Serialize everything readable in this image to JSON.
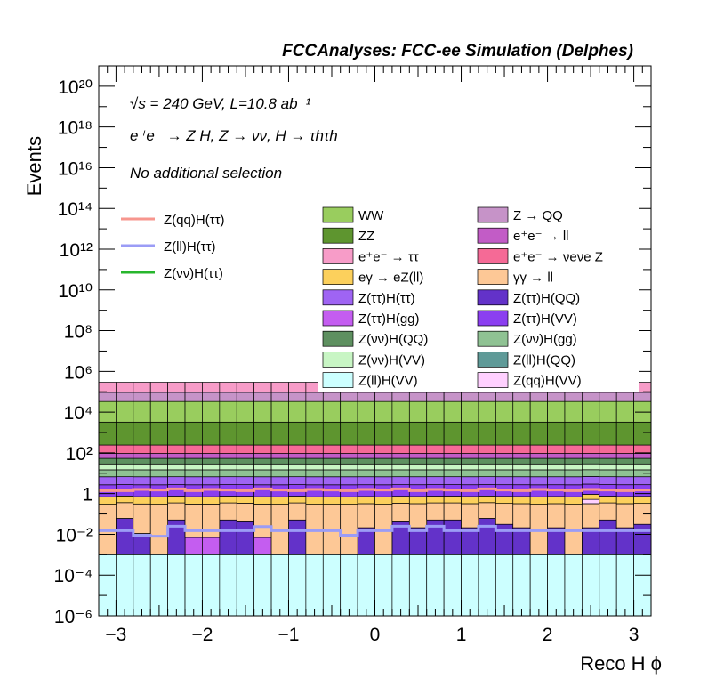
{
  "header": {
    "title": "FCCAnalyses: FCC-ee Simulation (Delphes)"
  },
  "annotations": {
    "energy": "√s = 240 GeV, L=10.8 ab⁻¹",
    "process": "e⁺e⁻ → Z H, Z → νν, H → τhτh",
    "selection": "No additional selection"
  },
  "chart_data": {
    "type": "bar",
    "title": "FCCAnalyses: FCC-ee Simulation (Delphes)",
    "xlabel": "Reco H ϕ",
    "ylabel": "Events",
    "xlim": [
      -3.2,
      3.2
    ],
    "ylim": [
      1e-06,
      1e+21
    ],
    "ylog": true,
    "grid": false,
    "x_tick_labels": [
      "−3",
      "−2",
      "−1",
      "0",
      "1",
      "2",
      "3"
    ],
    "y_tick_labels": [
      "10⁻⁶",
      "10⁻⁴",
      "10⁻²",
      "1",
      "10²",
      "10⁴",
      "10⁶",
      "10⁸",
      "10¹⁰",
      "10¹²",
      "10¹⁴",
      "10¹⁶",
      "10¹⁸",
      "10²⁰"
    ],
    "bins": 32,
    "stack": [
      {
        "name": "Z(ll)H(VV)",
        "color": "#ccffff",
        "values": [
          0.001,
          0.001,
          0.001,
          0.001,
          0.001,
          0.001,
          0.001,
          0.001,
          0.001,
          0.001,
          0.001,
          0.001,
          0.001,
          0.001,
          0.001,
          0.001,
          0.001,
          0.001,
          0.001,
          0.001,
          0.001,
          0.001,
          0.001,
          0.001,
          0.001,
          0.001,
          0.001,
          0.001,
          0.001,
          0.001,
          0.001,
          0.001
        ]
      },
      {
        "name": "Z(ll)H(QQ)",
        "color": "#5f9a98",
        "values": [
          0.0,
          0.0,
          0.0,
          0.0,
          0.0,
          0.0,
          0.0,
          0.0,
          0.0,
          0.0,
          0.0,
          0.0,
          0.0,
          0.0,
          0.0,
          0.0,
          0.0,
          0.0,
          5e-05,
          0.0,
          0.0,
          0.0,
          5e-05,
          0.0,
          0.0,
          0.0,
          0.0,
          0.0,
          0.0,
          0.0,
          0.0,
          0.0
        ]
      },
      {
        "name": "Z(ττ)H(gg)",
        "color": "#c45df0",
        "values": [
          0.0,
          0.0,
          0.0,
          0.0,
          0.0,
          0.006,
          0.006,
          0.0,
          0.0,
          0.006,
          0.0,
          0.0,
          0.0,
          0.0,
          0.0,
          0.0,
          0.0,
          0.0,
          0.0,
          0.0,
          0.0,
          0.0,
          0.0,
          0.0,
          0.0,
          0.0,
          0.0,
          0.0,
          0.0,
          0.0,
          0.0,
          0.0
        ]
      },
      {
        "name": "Z(ττ)H(QQ)",
        "color": "#6332c9",
        "values": [
          0.0,
          0.06,
          0.01,
          0.0,
          0.05,
          0.0,
          0.0,
          0.05,
          0.04,
          0.0,
          0.0,
          0.05,
          0.0,
          0.0,
          0.0,
          0.02,
          0.0,
          0.04,
          0.02,
          0.05,
          0.05,
          0.02,
          0.06,
          0.03,
          0.02,
          0.0,
          0.02,
          0.0,
          0.02,
          0.05,
          0.02,
          0.03
        ]
      },
      {
        "name": "γγ → ll",
        "color": "#fdc896",
        "values": [
          0.3,
          0.3,
          0.3,
          0.3,
          0.3,
          0.3,
          0.3,
          0.3,
          0.3,
          0.3,
          0.3,
          0.3,
          0.3,
          0.3,
          0.3,
          0.3,
          0.3,
          0.3,
          0.3,
          0.3,
          0.3,
          0.3,
          0.3,
          0.3,
          0.3,
          0.3,
          0.3,
          0.3,
          0.3,
          0.3,
          0.3,
          0.3
        ]
      },
      {
        "name": "Z(qq)H(VV)",
        "color": "#ffd0ff",
        "values": [
          0.0,
          0.0,
          0.0,
          0.0,
          0.0,
          0.0,
          0.0,
          0.0,
          0.0,
          0.0,
          0.0,
          0.0,
          0.0,
          0.0,
          0.0,
          0.0,
          0.0,
          0.0,
          0.0,
          0.0,
          0.0,
          0.0,
          0.0,
          0.0,
          0.0,
          0.0,
          0.0,
          0.0,
          0.2,
          0.0,
          0.0,
          0.0
        ]
      },
      {
        "name": "eγ → eZ(ll)",
        "color": "#fcd05c",
        "values": [
          0.4,
          0.4,
          0.4,
          0.4,
          0.4,
          0.4,
          0.4,
          0.4,
          0.4,
          0.4,
          0.4,
          0.4,
          0.4,
          0.4,
          0.4,
          0.4,
          0.4,
          0.4,
          0.4,
          0.4,
          0.4,
          0.4,
          0.4,
          0.4,
          0.4,
          0.4,
          0.4,
          0.4,
          0.4,
          0.4,
          0.4,
          0.4
        ]
      },
      {
        "name": "Z(ττ)H(VV)",
        "color": "#8b3ff0",
        "values": [
          2.0,
          2.0,
          2.0,
          2.0,
          2.0,
          2.0,
          2.0,
          2.0,
          2.0,
          2.0,
          2.0,
          2.0,
          2.0,
          2.0,
          2.0,
          2.0,
          2.0,
          2.0,
          2.0,
          2.0,
          2.0,
          2.0,
          2.0,
          2.0,
          2.0,
          2.0,
          2.0,
          2.0,
          2.0,
          2.0,
          2.0,
          2.0
        ]
      },
      {
        "name": "Z(ττ)H(ττ)",
        "color": "#9f64f3",
        "values": [
          4.0,
          4.0,
          4.0,
          4.0,
          4.0,
          4.0,
          4.0,
          4.0,
          4.0,
          4.0,
          4.0,
          4.0,
          4.0,
          4.0,
          4.0,
          4.0,
          4.0,
          4.0,
          4.0,
          4.0,
          4.0,
          4.0,
          4.0,
          4.0,
          4.0,
          4.0,
          4.0,
          4.0,
          4.0,
          4.0,
          4.0,
          4.0
        ]
      },
      {
        "name": "Z(νν)H(gg)",
        "color": "#8fc293",
        "values": [
          8.0,
          8.0,
          8.0,
          8.0,
          8.0,
          8.0,
          8.0,
          8.0,
          8.0,
          8.0,
          8.0,
          8.0,
          8.0,
          8.0,
          8.0,
          8.0,
          8.0,
          8.0,
          8.0,
          8.0,
          8.0,
          8.0,
          8.0,
          8.0,
          8.0,
          8.0,
          8.0,
          8.0,
          8.0,
          8.0,
          8.0,
          8.0
        ]
      },
      {
        "name": "Z(νν)H(VV)",
        "color": "#c8f5c4",
        "values": [
          14.0,
          14.0,
          14.0,
          14.0,
          14.0,
          14.0,
          14.0,
          14.0,
          14.0,
          14.0,
          14.0,
          14.0,
          14.0,
          14.0,
          14.0,
          14.0,
          14.0,
          14.0,
          14.0,
          14.0,
          14.0,
          14.0,
          14.0,
          14.0,
          14.0,
          14.0,
          14.0,
          14.0,
          14.0,
          14.0,
          14.0,
          14.0
        ]
      },
      {
        "name": "Z(νν)H(QQ)",
        "color": "#5e9060",
        "values": [
          25.0,
          25.0,
          25.0,
          25.0,
          25.0,
          25.0,
          25.0,
          25.0,
          25.0,
          25.0,
          25.0,
          25.0,
          25.0,
          25.0,
          25.0,
          25.0,
          25.0,
          25.0,
          25.0,
          25.0,
          25.0,
          25.0,
          25.0,
          25.0,
          25.0,
          25.0,
          25.0,
          25.0,
          25.0,
          25.0,
          25.0,
          25.0
        ]
      },
      {
        "name": "e⁺e⁻ → ll",
        "color": "#c25cc6",
        "values": [
          40.0,
          40.0,
          40.0,
          40.0,
          40.0,
          40.0,
          40.0,
          40.0,
          40.0,
          40.0,
          40.0,
          40.0,
          40.0,
          40.0,
          40.0,
          40.0,
          40.0,
          40.0,
          40.0,
          40.0,
          40.0,
          40.0,
          40.0,
          40.0,
          40.0,
          40.0,
          40.0,
          40.0,
          40.0,
          40.0,
          40.0,
          40.0
        ]
      },
      {
        "name": "e⁺e⁻ → νeνe Z",
        "color": "#f56a96",
        "values": [
          150.0,
          150.0,
          150.0,
          150.0,
          150.0,
          150.0,
          150.0,
          150.0,
          150.0,
          150.0,
          150.0,
          150.0,
          150.0,
          150.0,
          150.0,
          150.0,
          150.0,
          150.0,
          150.0,
          150.0,
          150.0,
          150.0,
          150.0,
          150.0,
          150.0,
          150.0,
          150.0,
          150.0,
          150.0,
          150.0,
          150.0,
          150.0
        ]
      },
      {
        "name": "ZZ",
        "color": "#5e952f",
        "values": [
          3000.0,
          3000.0,
          3000.0,
          3000.0,
          3000.0,
          3000.0,
          3000.0,
          3000.0,
          3000.0,
          3000.0,
          3000.0,
          3000.0,
          3000.0,
          3000.0,
          3000.0,
          3000.0,
          3000.0,
          3000.0,
          3000.0,
          3000.0,
          3000.0,
          3000.0,
          3000.0,
          3000.0,
          3000.0,
          3000.0,
          3000.0,
          3000.0,
          3000.0,
          3000.0,
          3000.0,
          3000.0
        ]
      },
      {
        "name": "WW",
        "color": "#99cd5e",
        "values": [
          30000.0,
          30000.0,
          30000.0,
          30000.0,
          30000.0,
          30000.0,
          30000.0,
          30000.0,
          30000.0,
          30000.0,
          30000.0,
          30000.0,
          30000.0,
          30000.0,
          30000.0,
          30000.0,
          30000.0,
          30000.0,
          30000.0,
          30000.0,
          30000.0,
          30000.0,
          30000.0,
          30000.0,
          30000.0,
          30000.0,
          30000.0,
          30000.0,
          30000.0,
          30000.0,
          30000.0,
          30000.0
        ]
      },
      {
        "name": "Z → QQ",
        "color": "#c693c8",
        "values": [
          60000.0,
          60000.0,
          60000.0,
          60000.0,
          60000.0,
          60000.0,
          60000.0,
          60000.0,
          60000.0,
          60000.0,
          60000.0,
          60000.0,
          60000.0,
          60000.0,
          60000.0,
          60000.0,
          60000.0,
          60000.0,
          60000.0,
          60000.0,
          60000.0,
          60000.0,
          60000.0,
          60000.0,
          60000.0,
          60000.0,
          60000.0,
          60000.0,
          60000.0,
          60000.0,
          60000.0,
          60000.0
        ]
      },
      {
        "name": "e⁺e⁻ → ττ",
        "color": "#f79cc8",
        "values": [
          200000.0,
          200000.0,
          200000.0,
          200000.0,
          200000.0,
          200000.0,
          200000.0,
          200000.0,
          200000.0,
          200000.0,
          200000.0,
          200000.0,
          200000.0,
          200000.0,
          200000.0,
          200000.0,
          200000.0,
          200000.0,
          200000.0,
          200000.0,
          200000.0,
          200000.0,
          200000.0,
          200000.0,
          200000.0,
          200000.0,
          200000.0,
          200000.0,
          200000.0,
          200000.0,
          200000.0,
          200000.0
        ]
      }
    ],
    "signals": [
      {
        "name": "Z(qq)H(ττ)",
        "color": "#f7968e",
        "values": [
          1.4,
          1.4,
          1.6,
          1.5,
          1.7,
          1.4,
          1.6,
          1.5,
          1.4,
          1.7,
          1.5,
          1.4,
          1.6,
          1.5,
          1.4,
          1.6,
          1.5,
          1.7,
          1.4,
          1.6,
          1.5,
          1.4,
          1.7,
          1.5,
          1.4,
          1.6,
          1.5,
          1.4,
          1.6,
          1.5,
          1.4,
          1.5
        ]
      },
      {
        "name": "Z(ll)H(ττ)",
        "color": "#9b9cf6",
        "values": [
          0.015,
          0.015,
          0.009,
          0.008,
          0.025,
          0.015,
          0.015,
          0.015,
          0.015,
          0.024,
          0.015,
          0.015,
          0.015,
          0.015,
          0.009,
          0.015,
          0.015,
          0.025,
          0.015,
          0.025,
          0.015,
          0.015,
          0.025,
          0.015,
          0.015,
          0.015,
          0.015,
          0.015,
          0.015,
          0.015,
          0.015,
          0.015
        ]
      },
      {
        "name": "Z(νν)H(ττ)",
        "color": "#27b62d",
        "values": [
          0,
          0,
          0,
          0,
          0,
          0,
          0,
          0,
          0,
          0,
          0,
          0,
          0,
          0,
          0,
          0,
          0,
          0,
          0,
          0,
          0,
          0,
          0,
          0,
          0,
          0,
          0,
          0,
          0,
          0,
          0,
          0
        ]
      }
    ],
    "legend": {
      "placement": "top",
      "col1": [
        "WW",
        "ZZ",
        "e⁺e⁻ → ττ",
        "eγ → eZ(ll)",
        "Z(ττ)H(ττ)",
        "Z(ττ)H(gg)",
        "Z(νν)H(QQ)",
        "Z(νν)H(VV)",
        "Z(ll)H(VV)"
      ],
      "col2": [
        "Z → QQ",
        "e⁺e⁻ → ll",
        "e⁺e⁻ → νeνe Z",
        "γγ → ll",
        "Z(ττ)H(QQ)",
        "Z(ττ)H(VV)",
        "Z(νν)H(gg)",
        "Z(ll)H(QQ)",
        "Z(qq)H(VV)"
      ],
      "signals": [
        "Z(qq)H(ττ)",
        "Z(ll)H(ττ)",
        "Z(νν)H(ττ)"
      ]
    }
  }
}
